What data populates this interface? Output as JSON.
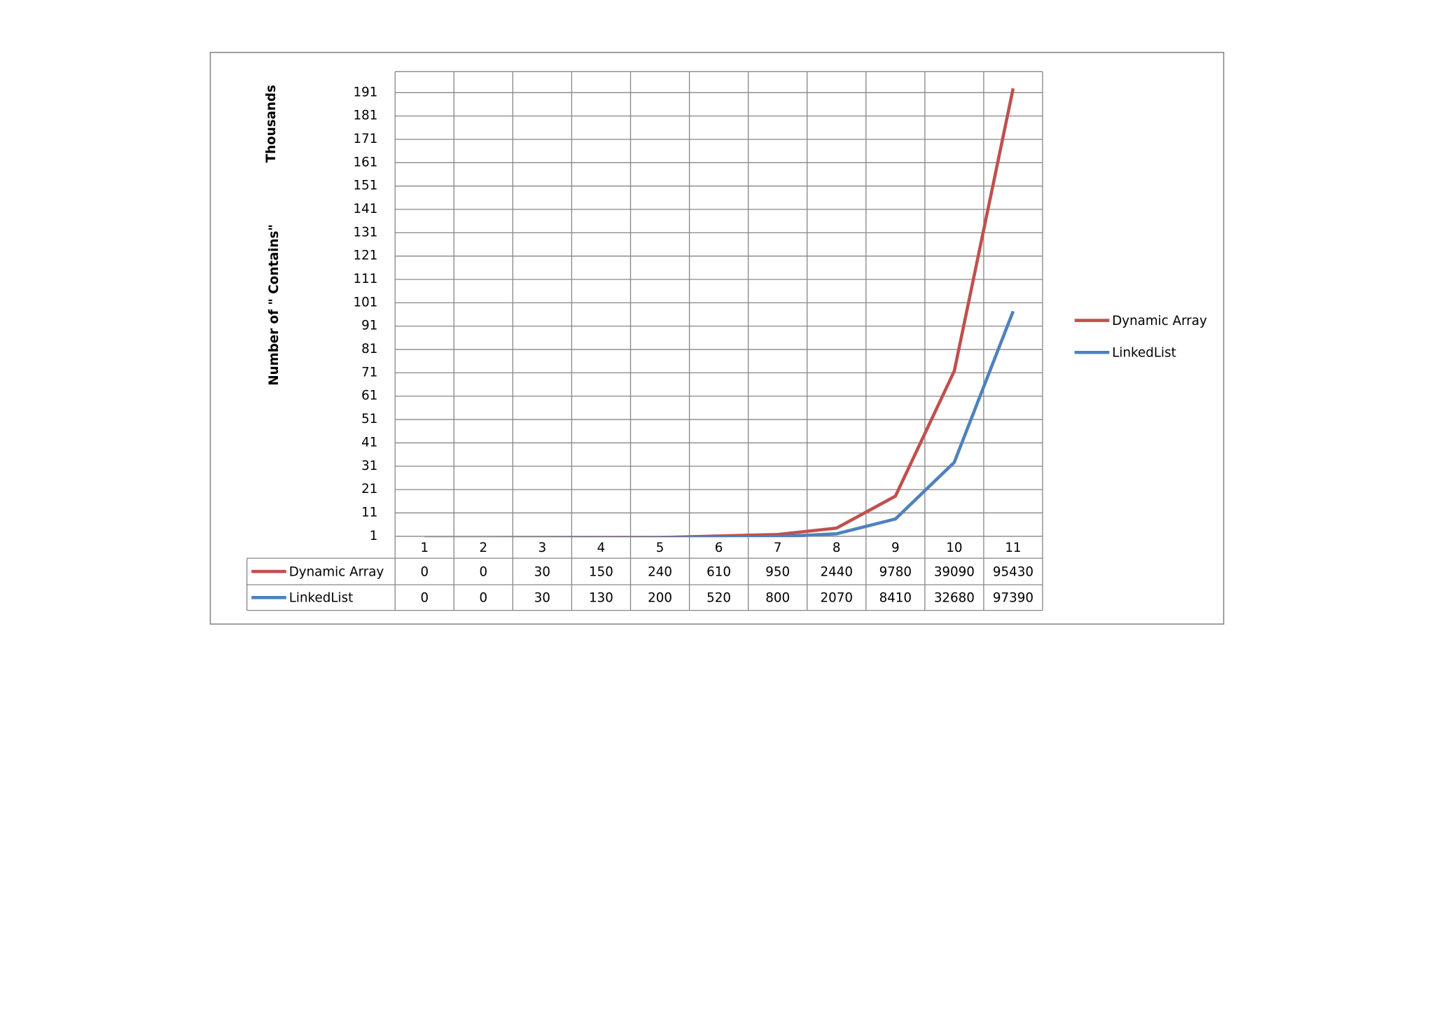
{
  "chart_data": {
    "type": "line",
    "stacked": true,
    "y_axis_label": "Number of \" Contains\"",
    "display_unit": "Thousands",
    "categories": [
      "1",
      "2",
      "3",
      "4",
      "5",
      "6",
      "7",
      "8",
      "9",
      "10",
      "11"
    ],
    "series": [
      {
        "name": "Dynamic Array",
        "color": "#c0504d",
        "values": [
          0,
          0,
          30,
          150,
          240,
          610,
          950,
          2440,
          9780,
          39090,
          95430
        ]
      },
      {
        "name": "LinkedList",
        "color": "#4f81bd",
        "values": [
          0,
          0,
          30,
          130,
          200,
          520,
          800,
          2070,
          8410,
          32680,
          97390
        ]
      }
    ],
    "ylim": [
      1000,
      200000
    ],
    "yticks": [
      {
        "value": 1000,
        "label": "1"
      },
      {
        "value": 11000,
        "label": "11"
      },
      {
        "value": 21000,
        "label": "21"
      },
      {
        "value": 31000,
        "label": "31"
      },
      {
        "value": 41000,
        "label": "41"
      },
      {
        "value": 51000,
        "label": "51"
      },
      {
        "value": 61000,
        "label": "61"
      },
      {
        "value": 71000,
        "label": "71"
      },
      {
        "value": 81000,
        "label": "81"
      },
      {
        "value": 91000,
        "label": "91"
      },
      {
        "value": 101000,
        "label": "101"
      },
      {
        "value": 111000,
        "label": "111"
      },
      {
        "value": 121000,
        "label": "121"
      },
      {
        "value": 131000,
        "label": "131"
      },
      {
        "value": 141000,
        "label": "141"
      },
      {
        "value": 151000,
        "label": "151"
      },
      {
        "value": 161000,
        "label": "161"
      },
      {
        "value": 171000,
        "label": "171"
      },
      {
        "value": 181000,
        "label": "181"
      },
      {
        "value": 191000,
        "label": "191"
      }
    ],
    "grid": true,
    "legend": "right",
    "data_table": true
  }
}
